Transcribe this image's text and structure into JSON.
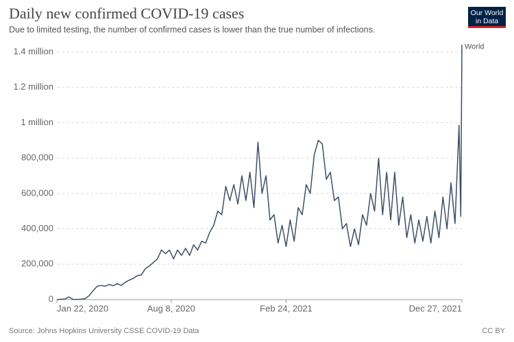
{
  "logo": [
    "Our World",
    "in Data"
  ],
  "chart_data": {
    "type": "line",
    "title": "Daily new confirmed COVID-19 cases",
    "subtitle": "Due to limited testing, the number of confirmed cases is lower than the true number of infections.",
    "source": "Source: Johns Hopkins University CSSE COVID-19 Data",
    "license": "CC BY",
    "grid": true,
    "x": [
      "2020-01-22",
      "2020-01-29",
      "2020-02-05",
      "2020-02-12",
      "2020-02-19",
      "2020-02-26",
      "2020-03-04",
      "2020-03-11",
      "2020-03-18",
      "2020-03-25",
      "2020-04-01",
      "2020-04-08",
      "2020-04-15",
      "2020-04-22",
      "2020-04-29",
      "2020-05-06",
      "2020-05-13",
      "2020-05-20",
      "2020-05-27",
      "2020-06-03",
      "2020-06-10",
      "2020-06-17",
      "2020-06-24",
      "2020-07-01",
      "2020-07-08",
      "2020-07-15",
      "2020-07-22",
      "2020-07-29",
      "2020-08-05",
      "2020-08-12",
      "2020-08-19",
      "2020-08-26",
      "2020-09-02",
      "2020-09-09",
      "2020-09-16",
      "2020-09-23",
      "2020-09-30",
      "2020-10-07",
      "2020-10-14",
      "2020-10-21",
      "2020-10-28",
      "2020-11-04",
      "2020-11-11",
      "2020-11-18",
      "2020-11-25",
      "2020-12-02",
      "2020-12-09",
      "2020-12-16",
      "2020-12-23",
      "2020-12-30",
      "2021-01-06",
      "2021-01-13",
      "2021-01-20",
      "2021-01-27",
      "2021-02-03",
      "2021-02-10",
      "2021-02-17",
      "2021-02-24",
      "2021-03-03",
      "2021-03-10",
      "2021-03-17",
      "2021-03-24",
      "2021-03-31",
      "2021-04-07",
      "2021-04-14",
      "2021-04-21",
      "2021-04-28",
      "2021-05-05",
      "2021-05-12",
      "2021-05-19",
      "2021-05-26",
      "2021-06-02",
      "2021-06-09",
      "2021-06-16",
      "2021-06-23",
      "2021-06-30",
      "2021-07-07",
      "2021-07-14",
      "2021-07-21",
      "2021-07-28",
      "2021-08-04",
      "2021-08-11",
      "2021-08-18",
      "2021-08-25",
      "2021-09-01",
      "2021-09-08",
      "2021-09-15",
      "2021-09-22",
      "2021-09-29",
      "2021-10-06",
      "2021-10-13",
      "2021-10-20",
      "2021-10-27",
      "2021-11-03",
      "2021-11-10",
      "2021-11-17",
      "2021-11-24",
      "2021-12-01",
      "2021-12-08",
      "2021-12-15",
      "2021-12-22",
      "2021-12-25",
      "2021-12-27"
    ],
    "series": [
      {
        "name": "World",
        "color": "#3c4e66",
        "values": [
          600,
          2000,
          3500,
          15000,
          1500,
          1200,
          2500,
          5000,
          22000,
          50000,
          75000,
          80000,
          76000,
          85000,
          78000,
          90000,
          80000,
          98000,
          110000,
          120000,
          135000,
          140000,
          175000,
          190000,
          210000,
          230000,
          280000,
          260000,
          280000,
          230000,
          280000,
          250000,
          290000,
          250000,
          310000,
          280000,
          330000,
          320000,
          380000,
          420000,
          500000,
          480000,
          640000,
          560000,
          650000,
          540000,
          700000,
          560000,
          720000,
          520000,
          890000,
          600000,
          700000,
          450000,
          480000,
          320000,
          420000,
          300000,
          450000,
          330000,
          520000,
          480000,
          650000,
          600000,
          820000,
          900000,
          880000,
          680000,
          720000,
          560000,
          580000,
          400000,
          430000,
          300000,
          400000,
          310000,
          480000,
          420000,
          600000,
          500000,
          800000,
          480000,
          720000,
          450000,
          720000,
          420000,
          580000,
          350000,
          480000,
          320000,
          450000,
          330000,
          470000,
          320000,
          500000,
          350000,
          580000,
          400000,
          660000,
          430000,
          985000,
          470000,
          1440000
        ]
      }
    ],
    "xlim": [
      "2020-01-22",
      "2021-12-27"
    ],
    "xticks": [
      {
        "value": "2020-01-22",
        "label": "Jan 22, 2020"
      },
      {
        "value": "2020-08-08",
        "label": "Aug 8, 2020"
      },
      {
        "value": "2021-02-24",
        "label": "Feb 24, 2021"
      },
      {
        "value": "2021-12-27",
        "label": "Dec 27, 2021"
      }
    ],
    "ylim": [
      0,
      1450000
    ],
    "yticks": [
      0,
      {
        "value": 200000,
        "label": "200,000"
      },
      {
        "value": 400000,
        "label": "400,000"
      },
      {
        "value": 600000,
        "label": "600,000"
      },
      {
        "value": 800000,
        "label": "800,000"
      },
      {
        "value": 1000000,
        "label": "1 million"
      },
      {
        "value": 1200000,
        "label": "1.2 million"
      },
      {
        "value": 1400000,
        "label": "1.4 million"
      }
    ]
  }
}
